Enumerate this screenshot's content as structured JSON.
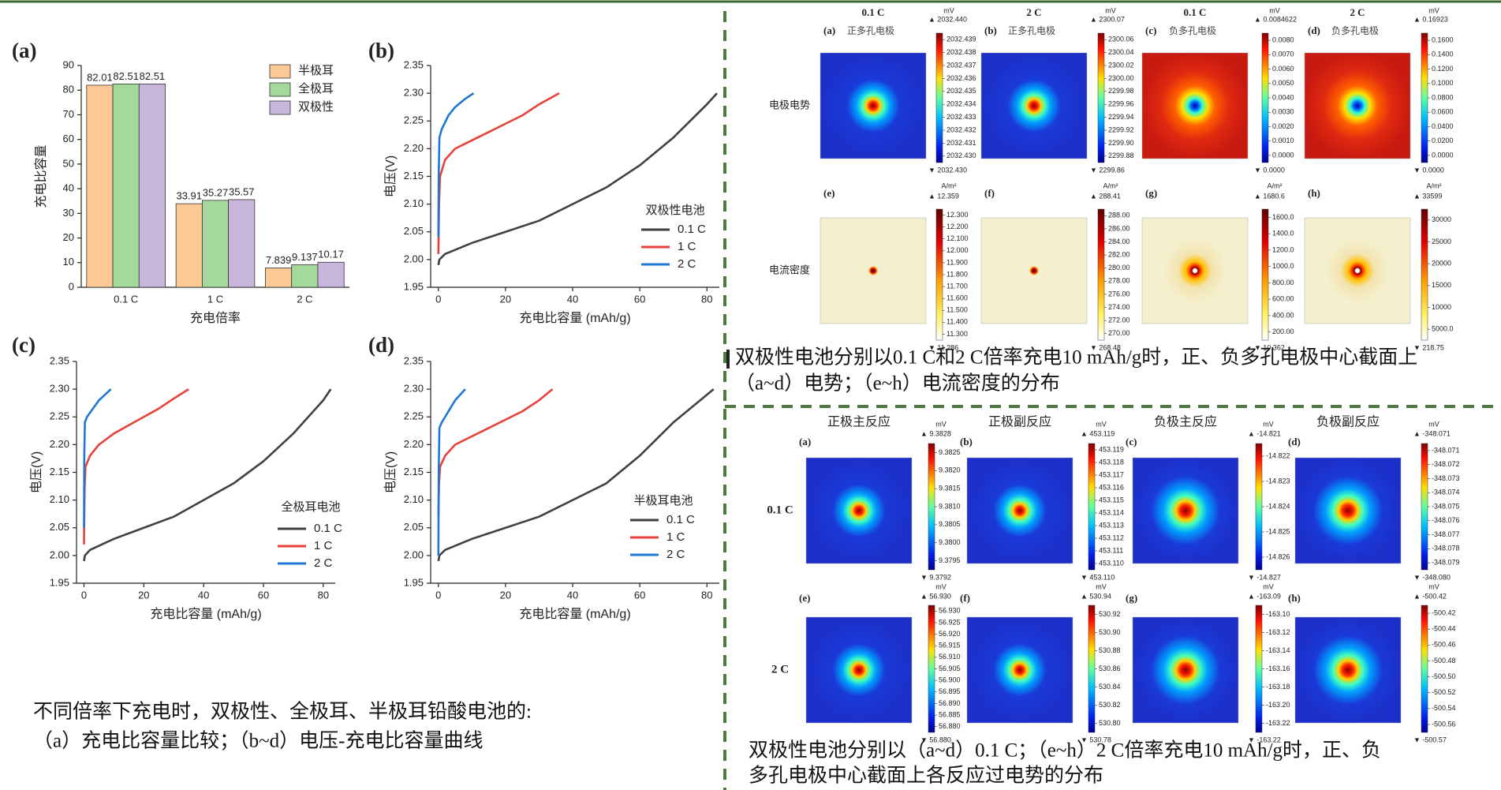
{
  "chart_data": [
    {
      "type": "bar",
      "label": "(a)",
      "xlabel": "充电倍率",
      "ylabel": "充电比容量",
      "categories": [
        "0.1 C",
        "1 C",
        "2 C"
      ],
      "series": [
        {
          "name": "半极耳",
          "color": "#fbc896",
          "values": [
            82.01,
            33.91,
            7.839
          ]
        },
        {
          "name": "全极耳",
          "color": "#a3d99b",
          "values": [
            82.51,
            35.27,
            9.137
          ]
        },
        {
          "name": "双极性",
          "color": "#c8b5dc",
          "values": [
            82.51,
            35.57,
            10.17
          ]
        }
      ],
      "ylim": [
        0,
        90
      ],
      "yticks": [
        0,
        10,
        20,
        30,
        40,
        50,
        60,
        70,
        80,
        90
      ]
    },
    {
      "type": "line",
      "label": "(b)",
      "xlabel": "充电比容量 (mAh/g)",
      "ylabel": "电压(V)",
      "legend_title": "双极性电池",
      "series": [
        {
          "name": "0.1 C",
          "color": "#404040",
          "x": [
            0,
            0.3,
            2,
            10,
            20,
            30,
            40,
            50,
            60,
            70,
            80,
            83
          ],
          "values": [
            1.99,
            2.0,
            2.01,
            2.03,
            2.05,
            2.07,
            2.1,
            2.13,
            2.17,
            2.22,
            2.28,
            2.3
          ]
        },
        {
          "name": "1 C",
          "color": "#e8413c",
          "x": [
            0,
            0.2,
            0.5,
            2,
            5,
            10,
            15,
            20,
            25,
            30,
            36
          ],
          "values": [
            2.01,
            2.1,
            2.15,
            2.18,
            2.2,
            2.215,
            2.23,
            2.245,
            2.26,
            2.28,
            2.3
          ]
        },
        {
          "name": "2 C",
          "color": "#1f77d4",
          "x": [
            0,
            0.1,
            0.3,
            1,
            3,
            5,
            8,
            10.5
          ],
          "values": [
            2.04,
            2.15,
            2.22,
            2.235,
            2.26,
            2.275,
            2.29,
            2.3
          ]
        }
      ],
      "xlim": [
        -2.3,
        83.7
      ],
      "xticks": [
        0,
        20,
        40,
        60,
        80
      ],
      "ylim": [
        1.95,
        2.35
      ],
      "yticks": [
        1.95,
        {
          "value": 2.0,
          "label": "2.00"
        },
        2.05,
        {
          "value": 2.1,
          "label": "2.10"
        },
        2.15,
        {
          "value": 2.2,
          "label": "2.20"
        },
        2.25,
        {
          "value": 2.3,
          "label": "2.30"
        },
        2.35
      ]
    },
    {
      "type": "line",
      "label": "(c)",
      "xlabel": "充电比容量 (mAh/g)",
      "ylabel": "电压(V)",
      "legend_title": "全极耳电池",
      "series": [
        {
          "name": "0.1 C",
          "color": "#404040",
          "x": [
            0,
            0.3,
            2,
            10,
            20,
            30,
            40,
            50,
            60,
            70,
            80,
            82.5
          ],
          "values": [
            1.99,
            2.0,
            2.01,
            2.03,
            2.05,
            2.07,
            2.1,
            2.13,
            2.17,
            2.22,
            2.28,
            2.3
          ]
        },
        {
          "name": "1 C",
          "color": "#e8413c",
          "x": [
            0,
            0.2,
            0.5,
            2,
            5,
            10,
            15,
            20,
            25,
            30,
            35
          ],
          "values": [
            2.02,
            2.12,
            2.16,
            2.18,
            2.2,
            2.22,
            2.235,
            2.25,
            2.265,
            2.283,
            2.3
          ]
        },
        {
          "name": "2 C",
          "color": "#1f77d4",
          "x": [
            0,
            0.1,
            0.3,
            1,
            3,
            5,
            7,
            9
          ],
          "values": [
            2.05,
            2.18,
            2.24,
            2.25,
            2.265,
            2.28,
            2.29,
            2.3
          ]
        }
      ],
      "xlim": [
        -2.5,
        84
      ],
      "xticks": [
        0,
        20,
        40,
        60,
        80
      ],
      "ylim": [
        1.95,
        2.35
      ],
      "yticks": [
        1.95,
        {
          "value": 2.0,
          "label": "2.00"
        },
        2.05,
        {
          "value": 2.1,
          "label": "2.10"
        },
        2.15,
        {
          "value": 2.2,
          "label": "2.20"
        },
        2.25,
        {
          "value": 2.3,
          "label": "2.30"
        },
        2.35
      ]
    },
    {
      "type": "line",
      "label": "(d)",
      "xlabel": "充电比容量 (mAh/g)",
      "ylabel": "电压(V)",
      "legend_title": "半极耳电池",
      "series": [
        {
          "name": "0.1 C",
          "color": "#404040",
          "x": [
            0,
            0.3,
            2,
            10,
            20,
            30,
            40,
            50,
            60,
            65,
            70,
            80,
            82
          ],
          "values": [
            1.99,
            2.0,
            2.01,
            2.03,
            2.05,
            2.07,
            2.1,
            2.13,
            2.18,
            2.21,
            2.24,
            2.29,
            2.3
          ]
        },
        {
          "name": "1 C",
          "color": "#e8413c",
          "x": [
            0,
            0.2,
            0.5,
            2,
            5,
            10,
            15,
            20,
            25,
            30,
            34
          ],
          "values": [
            2.07,
            2.13,
            2.16,
            2.18,
            2.2,
            2.215,
            2.23,
            2.245,
            2.26,
            2.28,
            2.3
          ]
        },
        {
          "name": "2 C",
          "color": "#1f77d4",
          "x": [
            0,
            0.1,
            0.3,
            1,
            3,
            5,
            8
          ],
          "values": [
            2.0,
            2.15,
            2.23,
            2.24,
            2.26,
            2.28,
            2.3
          ]
        }
      ],
      "xlim": [
        -2.3,
        83.7
      ],
      "xticks": [
        0,
        20,
        40,
        60,
        80
      ],
      "ylim": [
        1.95,
        2.35
      ],
      "yticks": [
        1.95,
        {
          "value": 2.0,
          "label": "2.00"
        },
        2.05,
        {
          "value": 2.1,
          "label": "2.10"
        },
        2.15,
        {
          "value": 2.2,
          "label": "2.20"
        },
        2.25,
        {
          "value": 2.3,
          "label": "2.30"
        },
        2.35
      ]
    }
  ],
  "left_caption": [
    "不同倍率下充电时，双极性、全极耳、半极耳铅酸电池的:",
    "（a）充电比容量比较；（b~d）电压-充电比容量曲线"
  ],
  "potential_figure": {
    "headers": [
      "0.1 C",
      "2 C",
      "0.1 C",
      "2 C"
    ],
    "row_labels": [
      "电极电势",
      "电流密度"
    ],
    "panels": [
      {
        "label": "(a)",
        "subtitle": "正多孔电极",
        "unit": "mV",
        "max": "▲ 2032.440",
        "min": "▼ 2032.430",
        "ticks": [
          "2032.439",
          "2032.438",
          "2032.437",
          "2032.436",
          "2032.435",
          "2032.434",
          "2032.433",
          "2032.432",
          "2032.431",
          "2032.430"
        ]
      },
      {
        "label": "(b)",
        "subtitle": "正多孔电极",
        "unit": "mV",
        "max": "▲ 2300.07",
        "min": "▼ 2299.86",
        "ticks": [
          "2300.06",
          "2300.04",
          "2300.02",
          "2300.00",
          "2299.98",
          "2299.96",
          "2299.94",
          "2299.92",
          "2299.90",
          "2299.88"
        ]
      },
      {
        "label": "(c)",
        "subtitle": "负多孔电极",
        "unit": "mV",
        "max": "▲ 0.0084622",
        "min": "▼ 0.0000",
        "ticks": [
          "0.0080",
          "0.0070",
          "0.0060",
          "0.0050",
          "0.0040",
          "0.0030",
          "0.0020",
          "0.0010",
          "0.0000"
        ]
      },
      {
        "label": "(d)",
        "subtitle": "负多孔电极",
        "unit": "mV",
        "max": "▲ 0.16923",
        "min": "▼ 0.0000",
        "ticks": [
          "0.1600",
          "0.1400",
          "0.1200",
          "0.1000",
          "0.0800",
          "0.0600",
          "0.0400",
          "0.0200",
          "0.0000"
        ]
      },
      {
        "label": "(e)",
        "unit": "A/m²",
        "max": "▲ 12.359",
        "min": "▼ 11.286",
        "ticks": [
          "12.300",
          "12.200",
          "12.100",
          "12.000",
          "11.900",
          "11.800",
          "11.700",
          "11.600",
          "11.500",
          "11.400",
          "11.300"
        ]
      },
      {
        "label": "(f)",
        "unit": "A/m²",
        "max": "▲ 288.41",
        "min": "▼ 268.48",
        "ticks": [
          "288.00",
          "286.00",
          "284.00",
          "282.00",
          "280.00",
          "278.00",
          "276.00",
          "274.00",
          "272.00",
          "270.00"
        ]
      },
      {
        "label": "(g)",
        "unit": "A/m²",
        "max": "▲ 1680.6",
        "min": "▼ 10.362",
        "ticks": [
          "1600.0",
          "1400.0",
          "1200.0",
          "1000.0",
          "800.00",
          "600.00",
          "400.00",
          "200.00"
        ]
      },
      {
        "label": "(h)",
        "unit": "A/m²",
        "max": "▲ 33599",
        "min": "▼ 218.75",
        "ticks": [
          "30000",
          "25000",
          "20000",
          "15000",
          "10000",
          "5000.0"
        ]
      }
    ],
    "caption": [
      "双极性电池分别以0.1 C和2 C倍率充电10 mAh/g时，正、负多孔电极中心截面上",
      "（a~d）电势；（e~h）电流密度的分布"
    ]
  },
  "overpotential_figure": {
    "headers": [
      "正极主反应",
      "正极副反应",
      "负极主反应",
      "负极副反应"
    ],
    "row_labels": [
      "0.1 C",
      "2 C"
    ],
    "panels": [
      {
        "label": "(a)",
        "unit": "mV",
        "max": "▲ 9.3828",
        "min": "▼ 9.3792",
        "ticks": [
          "9.3825",
          "9.3820",
          "9.3815",
          "9.3810",
          "9.3805",
          "9.3800",
          "9.3795"
        ]
      },
      {
        "label": "(b)",
        "unit": "mV",
        "max": "▲ 453.119",
        "min": "▼ 453.110",
        "ticks": [
          "453.119",
          "453.118",
          "453.117",
          "453.116",
          "453.115",
          "453.114",
          "453.113",
          "453.112",
          "453.111",
          "453.110"
        ]
      },
      {
        "label": "(c)",
        "unit": "mV",
        "max": "▲ -14.821",
        "min": "▼ -14.827",
        "ticks": [
          "-14.822",
          "-14.823",
          "-14.824",
          "-14.825",
          "-14.826"
        ]
      },
      {
        "label": "(d)",
        "unit": "mV",
        "max": "▲ -348.071",
        "min": "▼ -348.080",
        "ticks": [
          "-348.071",
          "-348.072",
          "-348.073",
          "-348.074",
          "-348.075",
          "-348.076",
          "-348.077",
          "-348.078",
          "-348.079"
        ]
      },
      {
        "label": "(e)",
        "unit": "mV",
        "max": "▲ 56.930",
        "min": "▼ 56.880",
        "ticks": [
          "56.930",
          "56.925",
          "56.920",
          "56.915",
          "56.910",
          "56.905",
          "56.900",
          "56.895",
          "56.890",
          "56.885",
          "56.880"
        ]
      },
      {
        "label": "(f)",
        "unit": "mV",
        "max": "▲ 530.94",
        "min": "▼ 530.78",
        "ticks": [
          "530.92",
          "530.90",
          "530.88",
          "530.86",
          "530.84",
          "530.82",
          "530.80"
        ]
      },
      {
        "label": "(g)",
        "unit": "mV",
        "max": "▲ -163.09",
        "min": "▼ -163.22",
        "ticks": [
          "-163.10",
          "-163.12",
          "-163.14",
          "-163.16",
          "-163.18",
          "-163.20",
          "-163.22"
        ]
      },
      {
        "label": "(h)",
        "unit": "mV",
        "max": "▲ -500.42",
        "min": "▼ -500.57",
        "ticks": [
          "-500.42",
          "-500.44",
          "-500.46",
          "-500.48",
          "-500.50",
          "-500.52",
          "-500.54",
          "-500.56"
        ]
      }
    ],
    "caption": [
      "双极性电池分别以（a~d）0.1 C；（e~h）2 C倍率充电10 mAh/g时，正、负",
      "多孔电极中心截面上各反应过电势的分布"
    ]
  }
}
